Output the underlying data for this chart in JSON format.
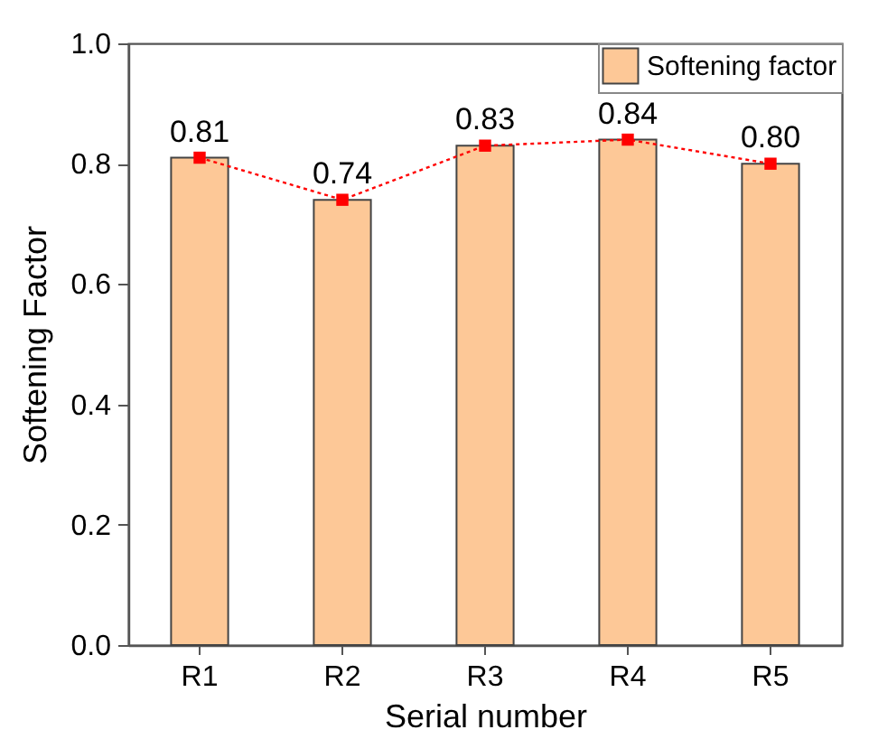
{
  "chart_data": {
    "type": "bar",
    "xlabel": "Serial number",
    "ylabel": "Softening Factor",
    "categories": [
      "R1",
      "R2",
      "R3",
      "R4",
      "R5"
    ],
    "series": [
      {
        "name": "Softening factor",
        "color": "#fdc897",
        "values": [
          0.81,
          0.74,
          0.83,
          0.84,
          0.8
        ],
        "value_labels": [
          "0.81",
          "0.74",
          "0.83",
          "0.84",
          "0.80"
        ]
      },
      {
        "type": "line",
        "color": "#ff0000",
        "values": [
          0.81,
          0.74,
          0.83,
          0.84,
          0.8
        ]
      }
    ],
    "ylim": [
      0,
      1
    ],
    "yticks": [
      {
        "value": 0,
        "label": "0.0"
      },
      0.2,
      0.4,
      0.6,
      0.8,
      {
        "value": 1,
        "label": "1.0"
      }
    ],
    "grid": false,
    "legend": "top right",
    "marker": "square",
    "line_style": "dotted"
  }
}
